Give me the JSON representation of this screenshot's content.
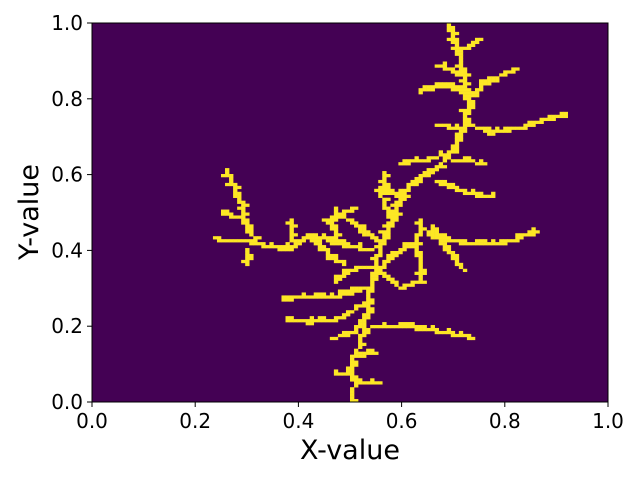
{
  "chart_data": {
    "type": "heatmap",
    "title": "",
    "xlabel": "X-value",
    "ylabel": "Y-value",
    "xlim": [
      0.0,
      1.0
    ],
    "ylim": [
      0.0,
      1.0
    ],
    "x_ticks": [
      "0.0",
      "0.2",
      "0.4",
      "0.6",
      "0.8",
      "1.0"
    ],
    "y_ticks": [
      "0.0",
      "0.2",
      "0.4",
      "0.6",
      "0.8",
      "1.0"
    ],
    "grid": false,
    "legend": "none",
    "colormap": "viridis",
    "background_color": "#440154",
    "filled_color": "#fde725",
    "grid_resolution": 128,
    "note_structure": "diffusion-limited aggregation cluster grown upward from the bottom near x=0.5",
    "branches": [
      [
        [
          0.5,
          0.0
        ],
        [
          0.51,
          0.05
        ],
        [
          0.5,
          0.1
        ],
        [
          0.52,
          0.15
        ],
        [
          0.53,
          0.22
        ],
        [
          0.54,
          0.3
        ],
        [
          0.55,
          0.36
        ],
        [
          0.56,
          0.42
        ],
        [
          0.58,
          0.48
        ],
        [
          0.6,
          0.54
        ],
        [
          0.63,
          0.59
        ],
        [
          0.67,
          0.62
        ],
        [
          0.7,
          0.66
        ],
        [
          0.72,
          0.72
        ],
        [
          0.73,
          0.8
        ],
        [
          0.72,
          0.86
        ],
        [
          0.71,
          0.92
        ],
        [
          0.69,
          1.0
        ]
      ],
      [
        [
          0.71,
          0.92
        ],
        [
          0.75,
          0.96
        ]
      ],
      [
        [
          0.73,
          0.8
        ],
        [
          0.76,
          0.84
        ],
        [
          0.82,
          0.88
        ]
      ],
      [
        [
          0.72,
          0.86
        ],
        [
          0.67,
          0.89
        ]
      ],
      [
        [
          0.73,
          0.8
        ],
        [
          0.69,
          0.84
        ],
        [
          0.64,
          0.82
        ]
      ],
      [
        [
          0.72,
          0.74
        ],
        [
          0.77,
          0.71
        ],
        [
          0.82,
          0.72
        ],
        [
          0.87,
          0.74
        ],
        [
          0.92,
          0.76
        ]
      ],
      [
        [
          0.72,
          0.72
        ],
        [
          0.67,
          0.73
        ]
      ],
      [
        [
          0.7,
          0.66
        ],
        [
          0.65,
          0.64
        ],
        [
          0.6,
          0.63
        ]
      ],
      [
        [
          0.7,
          0.64
        ],
        [
          0.76,
          0.63
        ]
      ],
      [
        [
          0.67,
          0.58
        ],
        [
          0.73,
          0.55
        ],
        [
          0.78,
          0.54
        ]
      ],
      [
        [
          0.6,
          0.54
        ],
        [
          0.56,
          0.57
        ]
      ],
      [
        [
          0.65,
          0.44
        ],
        [
          0.72,
          0.42
        ],
        [
          0.8,
          0.42
        ],
        [
          0.86,
          0.45
        ]
      ],
      [
        [
          0.66,
          0.46
        ],
        [
          0.69,
          0.4
        ],
        [
          0.72,
          0.35
        ]
      ],
      [
        [
          0.64,
          0.48
        ],
        [
          0.63,
          0.42
        ],
        [
          0.64,
          0.32
        ]
      ],
      [
        [
          0.62,
          0.42
        ],
        [
          0.58,
          0.38
        ],
        [
          0.55,
          0.34
        ]
      ],
      [
        [
          0.58,
          0.48
        ],
        [
          0.56,
          0.55
        ],
        [
          0.57,
          0.6
        ]
      ],
      [
        [
          0.56,
          0.42
        ],
        [
          0.52,
          0.46
        ],
        [
          0.47,
          0.5
        ]
      ],
      [
        [
          0.54,
          0.4
        ],
        [
          0.48,
          0.42
        ],
        [
          0.42,
          0.44
        ],
        [
          0.38,
          0.4
        ],
        [
          0.32,
          0.42
        ],
        [
          0.3,
          0.46
        ],
        [
          0.29,
          0.52
        ],
        [
          0.27,
          0.58
        ],
        [
          0.26,
          0.61
        ]
      ],
      [
        [
          0.32,
          0.42
        ],
        [
          0.24,
          0.43
        ]
      ],
      [
        [
          0.3,
          0.48
        ],
        [
          0.25,
          0.5
        ]
      ],
      [
        [
          0.3,
          0.4
        ],
        [
          0.3,
          0.36
        ]
      ],
      [
        [
          0.38,
          0.4
        ],
        [
          0.39,
          0.48
        ]
      ],
      [
        [
          0.42,
          0.44
        ],
        [
          0.45,
          0.4
        ],
        [
          0.49,
          0.36
        ]
      ],
      [
        [
          0.48,
          0.42
        ],
        [
          0.46,
          0.48
        ],
        [
          0.51,
          0.51
        ]
      ],
      [
        [
          0.53,
          0.3
        ],
        [
          0.48,
          0.28
        ],
        [
          0.42,
          0.28
        ],
        [
          0.37,
          0.27
        ]
      ],
      [
        [
          0.53,
          0.26
        ],
        [
          0.48,
          0.22
        ],
        [
          0.42,
          0.21
        ],
        [
          0.38,
          0.22
        ]
      ],
      [
        [
          0.54,
          0.2
        ],
        [
          0.6,
          0.2
        ],
        [
          0.66,
          0.19
        ],
        [
          0.74,
          0.17
        ]
      ],
      [
        [
          0.53,
          0.22
        ],
        [
          0.5,
          0.18
        ],
        [
          0.47,
          0.17
        ]
      ],
      [
        [
          0.51,
          0.12
        ],
        [
          0.55,
          0.13
        ]
      ],
      [
        [
          0.51,
          0.05
        ],
        [
          0.55,
          0.05
        ]
      ],
      [
        [
          0.5,
          0.07
        ],
        [
          0.47,
          0.08
        ]
      ],
      [
        [
          0.56,
          0.34
        ],
        [
          0.6,
          0.3
        ],
        [
          0.63,
          0.32
        ]
      ],
      [
        [
          0.55,
          0.36
        ],
        [
          0.51,
          0.35
        ],
        [
          0.47,
          0.32
        ]
      ]
    ]
  }
}
